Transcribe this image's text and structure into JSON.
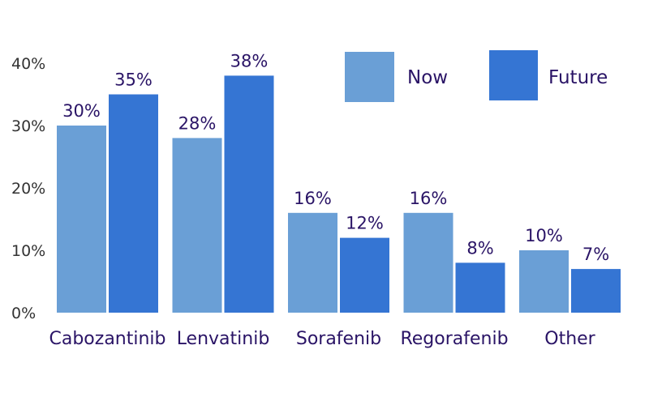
{
  "chart_data": {
    "type": "bar",
    "categories": [
      "Cabozantinib",
      "Lenvatinib",
      "Sorafenib",
      "Regorafenib",
      "Other"
    ],
    "series": [
      {
        "name": "Now",
        "values": [
          30,
          28,
          16,
          16,
          10
        ],
        "color": "#6a9fd6",
        "labels": [
          "30%",
          "28%",
          "16%",
          "16%",
          "10%"
        ]
      },
      {
        "name": "Future",
        "values": [
          35,
          38,
          12,
          8,
          7
        ],
        "color": "#3575d3",
        "labels": [
          "35%",
          "38%",
          "12%",
          "8%",
          "7%"
        ]
      }
    ],
    "yticks": [
      "0%",
      "10%",
      "20%",
      "30%",
      "40%"
    ],
    "ytick_values": [
      0,
      10,
      20,
      30,
      40
    ],
    "ylim": [
      0,
      40
    ],
    "legend_position": "top-right",
    "grid": false
  }
}
